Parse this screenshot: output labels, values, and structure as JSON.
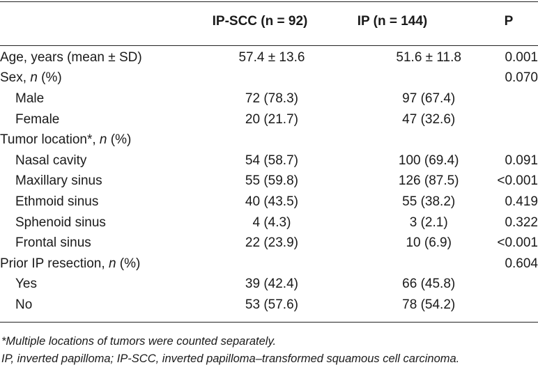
{
  "header": {
    "col1": "IP-SCC (n = 92)",
    "col2": "IP (n = 144)",
    "col3": "P"
  },
  "rows": [
    {
      "label": "Age, years (mean ± SD)",
      "indent": false,
      "v1": "57.4 ± 13.6",
      "v2": "51.6 ± 11.8",
      "p": "0.001"
    },
    {
      "label": "Sex, n (%)",
      "indent": false,
      "v1": "",
      "v2": "",
      "p": "0.070"
    },
    {
      "label": "Male",
      "indent": true,
      "v1": "72 (78.3)",
      "v2": "97 (67.4)",
      "p": ""
    },
    {
      "label": "Female",
      "indent": true,
      "v1": "20 (21.7)",
      "v2": "47 (32.6)",
      "p": ""
    },
    {
      "label": "Tumor location*, n (%)",
      "indent": false,
      "v1": "",
      "v2": "",
      "p": ""
    },
    {
      "label": "Nasal cavity",
      "indent": true,
      "v1": "54 (58.7)",
      "v2": "100 (69.4)",
      "p": "0.091"
    },
    {
      "label": "Maxillary sinus",
      "indent": true,
      "v1": "55 (59.8)",
      "v2": "126 (87.5)",
      "p": "<0.001"
    },
    {
      "label": "Ethmoid sinus",
      "indent": true,
      "v1": "40 (43.5)",
      "v2": "55 (38.2)",
      "p": "0.419"
    },
    {
      "label": "Sphenoid sinus",
      "indent": true,
      "v1": "4 (4.3)",
      "v2": "3 (2.1)",
      "p": "0.322"
    },
    {
      "label": "Frontal sinus",
      "indent": true,
      "v1": "22 (23.9)",
      "v2": "10 (6.9)",
      "p": "<0.001"
    },
    {
      "label": "Prior IP resection, n (%)",
      "indent": false,
      "v1": "",
      "v2": "",
      "p": "0.604"
    },
    {
      "label": "Yes",
      "indent": true,
      "v1": "39 (42.4)",
      "v2": "66 (45.8)",
      "p": ""
    },
    {
      "label": "No",
      "indent": true,
      "v1": "53 (57.6)",
      "v2": "78 (54.2)",
      "p": ""
    }
  ],
  "footnotes": {
    "note1": "*Multiple locations of tumors were counted separately.",
    "note2": "IP, inverted papilloma; IP-SCC, inverted papilloma–transformed squamous cell carcinoma."
  }
}
